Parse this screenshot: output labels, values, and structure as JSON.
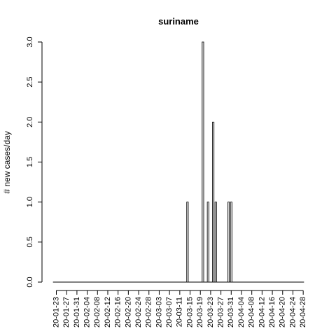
{
  "chart_data": {
    "type": "bar",
    "title": "suriname",
    "xlabel": "",
    "ylabel": "# new cases/day",
    "ylim": [
      0,
      3
    ],
    "yticks": [
      "0.0",
      "0.5",
      "1.0",
      "1.5",
      "2.0",
      "2.5",
      "3.0"
    ],
    "ytick_values": [
      0,
      0.5,
      1,
      1.5,
      2,
      2.5,
      3
    ],
    "start_date": "2020-01-22",
    "num_days": 98,
    "xtick_labels": [
      "20-01-23",
      "20-01-27",
      "20-01-31",
      "20-02-04",
      "20-02-08",
      "20-02-12",
      "20-02-16",
      "20-02-20",
      "20-02-24",
      "20-02-28",
      "20-03-03",
      "20-03-07",
      "20-03-11",
      "20-03-15",
      "20-03-19",
      "20-03-23",
      "20-03-27",
      "20-03-31",
      "20-04-04",
      "20-04-08",
      "20-04-12",
      "20-04-16",
      "20-04-20",
      "20-04-24",
      "20-04-28"
    ],
    "nonzero": [
      {
        "date": "2020-03-14",
        "value": 1
      },
      {
        "date": "2020-03-20",
        "value": 3
      },
      {
        "date": "2020-03-22",
        "value": 1
      },
      {
        "date": "2020-03-24",
        "value": 2
      },
      {
        "date": "2020-03-25",
        "value": 1
      },
      {
        "date": "2020-03-30",
        "value": 1
      },
      {
        "date": "2020-03-31",
        "value": 1
      }
    ],
    "grid": false,
    "legend": "none"
  }
}
